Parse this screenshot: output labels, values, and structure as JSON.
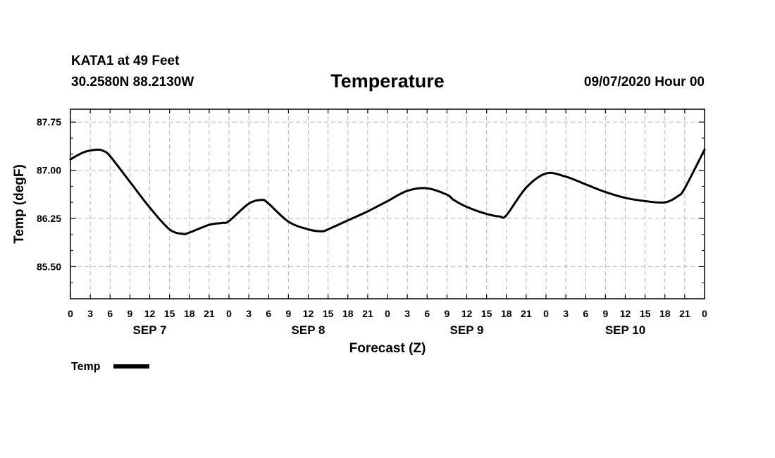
{
  "header": {
    "station": "KATA1 at 49 Feet",
    "coords": "30.2580N 88.2130W",
    "title": "Temperature",
    "run": "09/07/2020 Hour 00"
  },
  "chart_data": {
    "type": "line",
    "title": "Temperature",
    "xlabel": "Forecast (Z)",
    "ylabel": "Temp (degF)",
    "xlim": [
      0,
      96
    ],
    "ylim": [
      85.0,
      87.95
    ],
    "yticks": [
      85.5,
      86.25,
      87.0,
      87.75
    ],
    "ytick_labels": [
      "85.50",
      "86.25",
      "87.00",
      "87.75"
    ],
    "xticks": [
      0,
      3,
      6,
      9,
      12,
      15,
      18,
      21,
      24,
      27,
      30,
      33,
      36,
      39,
      42,
      45,
      48,
      51,
      54,
      57,
      60,
      63,
      66,
      69,
      72,
      75,
      78,
      81,
      84,
      87,
      90,
      93,
      96
    ],
    "xtick_labels": [
      "0",
      "3",
      "6",
      "9",
      "12",
      "15",
      "18",
      "21",
      "0",
      "3",
      "6",
      "9",
      "12",
      "15",
      "18",
      "21",
      "0",
      "3",
      "6",
      "9",
      "12",
      "15",
      "18",
      "21",
      "0",
      "3",
      "6",
      "9",
      "12",
      "15",
      "18",
      "21",
      "0"
    ],
    "day_labels": [
      {
        "label": "SEP 7",
        "x": 12
      },
      {
        "label": "SEP 8",
        "x": 36
      },
      {
        "label": "SEP 9",
        "x": 60
      },
      {
        "label": "SEP 10",
        "x": 84
      }
    ],
    "grid": true,
    "legend": "bottom-left",
    "series": [
      {
        "name": "Temp",
        "color": "#000000",
        "x": [
          0,
          2,
          4,
          5,
          6,
          9,
          12,
          15,
          17,
          18,
          21,
          23,
          24,
          27,
          29,
          30,
          33,
          36,
          38,
          39,
          42,
          45,
          48,
          51,
          54,
          57,
          58,
          60,
          63,
          65,
          66,
          69,
          72,
          75,
          78,
          81,
          84,
          87,
          90,
          92,
          93,
          96
        ],
        "y": [
          87.17,
          87.28,
          87.32,
          87.3,
          87.22,
          86.82,
          86.42,
          86.08,
          86.01,
          86.03,
          86.15,
          86.18,
          86.21,
          86.48,
          86.54,
          86.48,
          86.2,
          86.08,
          86.05,
          86.08,
          86.22,
          86.36,
          86.52,
          86.68,
          86.72,
          86.62,
          86.54,
          86.43,
          86.32,
          86.28,
          86.3,
          86.73,
          86.95,
          86.9,
          86.78,
          86.66,
          86.57,
          86.52,
          86.5,
          86.6,
          86.72,
          87.32
        ]
      }
    ]
  }
}
